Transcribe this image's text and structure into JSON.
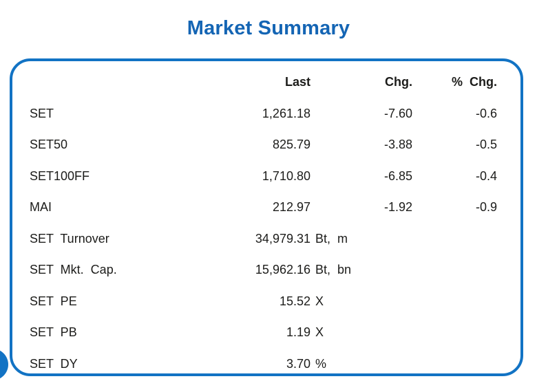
{
  "title": "Market Summary",
  "colors": {
    "accent_blue": "#1273c4",
    "title_blue": "#1465b4",
    "text_dark": "#1c1c1a"
  },
  "table": {
    "headers": {
      "label": "",
      "last": "Last",
      "chg": "Chg.",
      "pct_chg": "% Chg."
    },
    "rows": [
      {
        "label": "SET",
        "last": "1,261.18",
        "unit": "",
        "chg": "-7.60",
        "pct_chg": "-0.6"
      },
      {
        "label": "SET50",
        "last": "825.79",
        "unit": "",
        "chg": "-3.88",
        "pct_chg": "-0.5"
      },
      {
        "label": "SET100FF",
        "last": "1,710.80",
        "unit": "",
        "chg": "-6.85",
        "pct_chg": "-0.4"
      },
      {
        "label": "MAI",
        "last": "212.97",
        "unit": "",
        "chg": "-1.92",
        "pct_chg": "-0.9"
      },
      {
        "label": "SET Turnover",
        "last": "34,979.31",
        "unit": "Bt, m",
        "chg": "",
        "pct_chg": ""
      },
      {
        "label": "SET Mkt. Cap.",
        "last": "15,962.16",
        "unit": "Bt, bn",
        "chg": "",
        "pct_chg": ""
      },
      {
        "label": "SET PE",
        "last": "15.52",
        "unit": "X",
        "chg": "",
        "pct_chg": ""
      },
      {
        "label": "SET PB",
        "last": "1.19",
        "unit": "X",
        "chg": "",
        "pct_chg": ""
      },
      {
        "label": "SET DY",
        "last": "3.70",
        "unit": "%",
        "chg": "",
        "pct_chg": ""
      }
    ]
  }
}
